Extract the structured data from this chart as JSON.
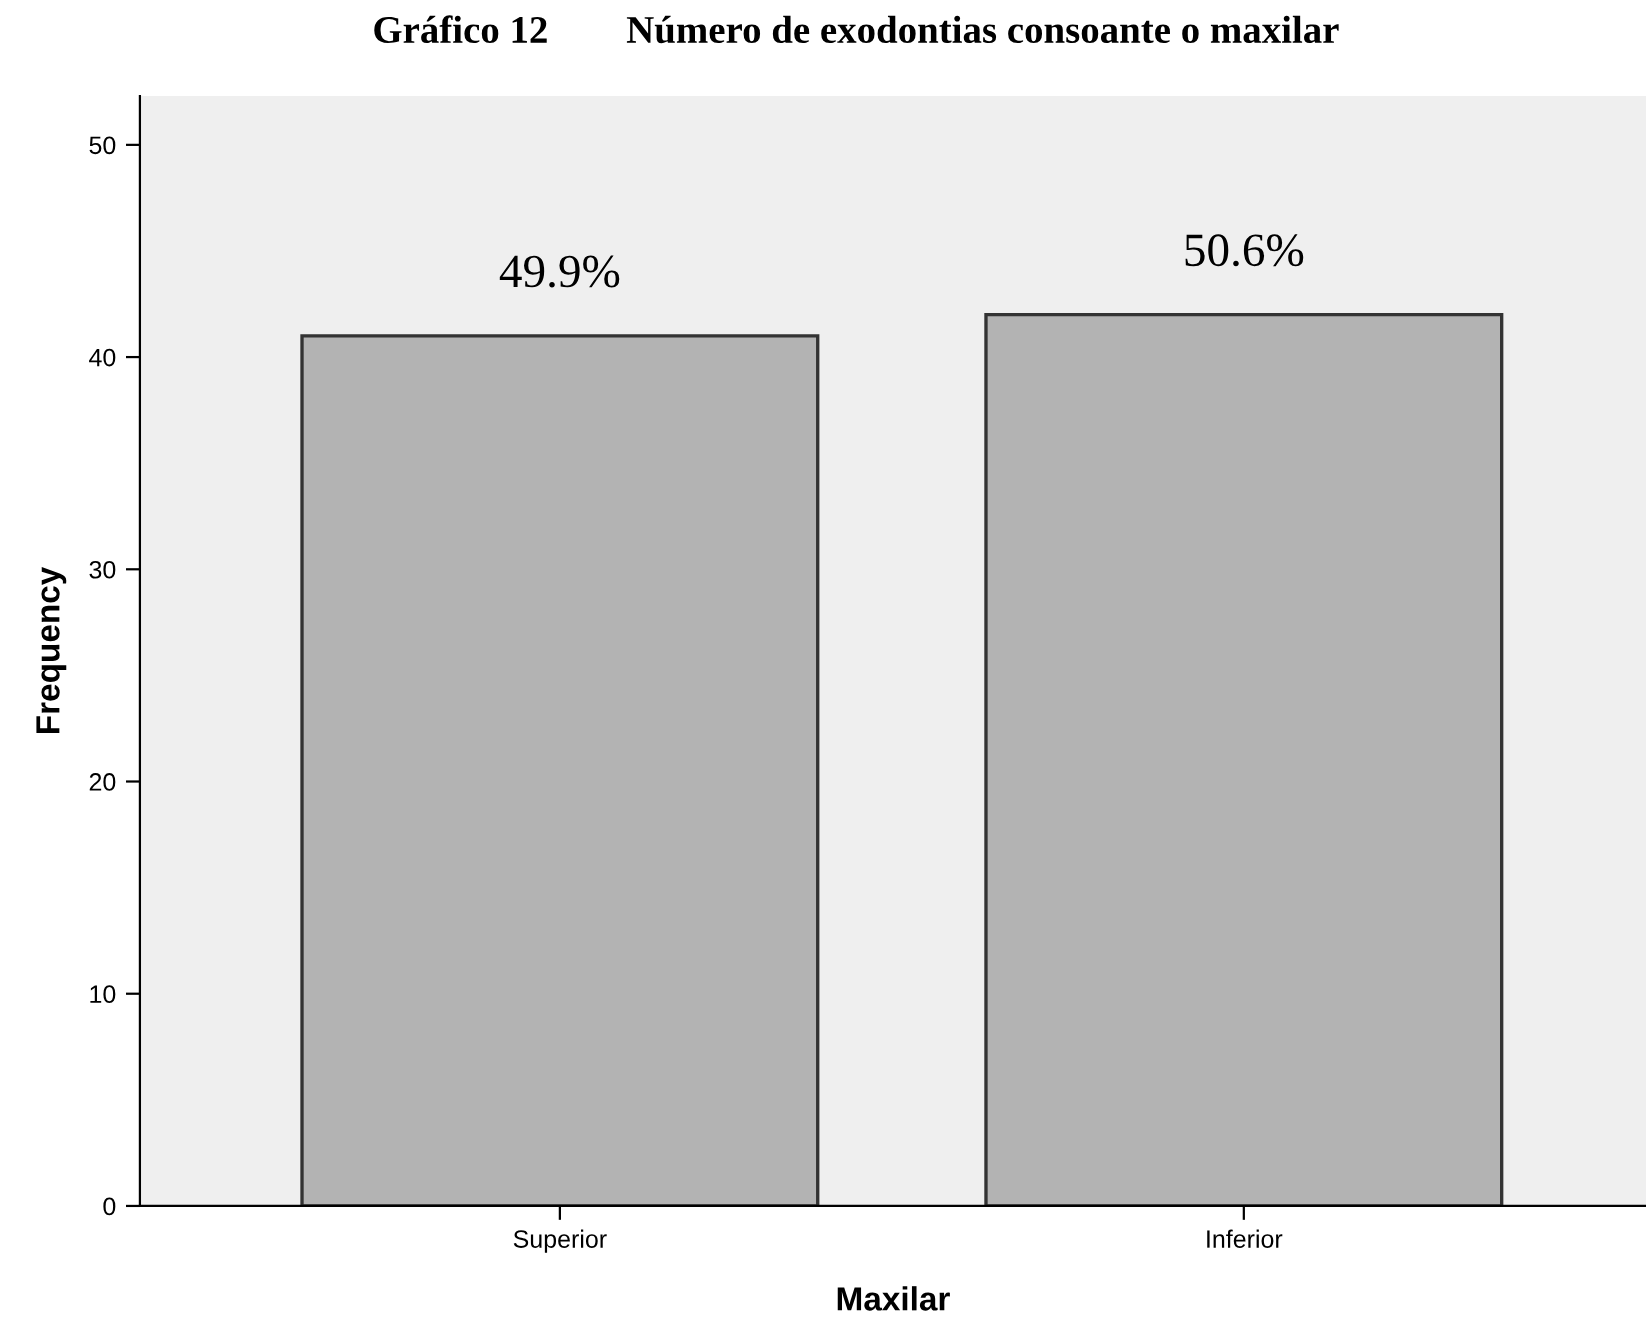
{
  "chart_data": {
    "type": "bar",
    "title": "Gráfico 12        Número de exodontias consoante o maxilar",
    "categories": [
      "Superior",
      "Inferior"
    ],
    "values": [
      41,
      42
    ],
    "annotations": [
      {
        "text": "49.9%",
        "x": "Superior",
        "y": 41
      },
      {
        "text": "50.6%",
        "x": "Inferior",
        "y": 42
      }
    ],
    "color": "#b3b3b3",
    "xlabel": "Maxilar",
    "ylabel": "Frequency",
    "ylim": [
      0,
      52.3
    ],
    "yticks": [
      0,
      10,
      20,
      30,
      40,
      50
    ],
    "grid": false,
    "legend": false
  }
}
